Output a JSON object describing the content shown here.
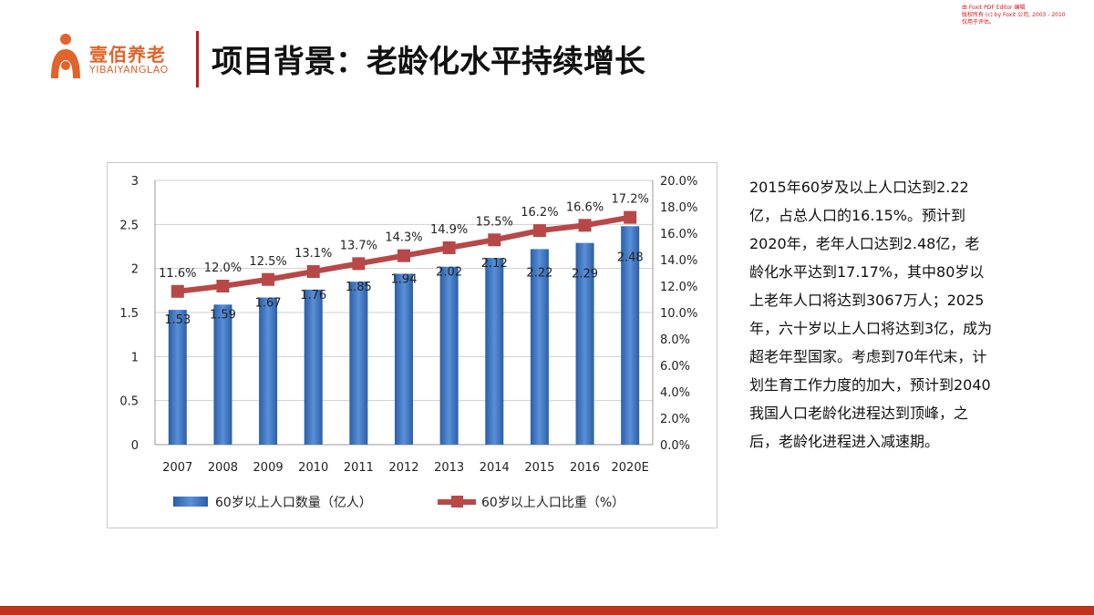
{
  "logo": {
    "name": "壹佰养老",
    "sub": "YIBAIYANGLAO"
  },
  "title": "项目背景：老龄化水平持续增长",
  "watermark": [
    "由 Foxit PDF Editor 编辑",
    "版权所有 (c) by Foxit 公司, 2003 - 2010",
    "仅用于评估。"
  ],
  "description": "2015年60岁及以上人口达到2.22亿，占总人口的16.15%。预计到2020年，老年人口达到2.48亿，老龄化水平达到17.17%，其中80岁以上老年人口将达到3067万人；2025年，六十岁以上人口将达到3亿，成为超老年型国家。考虑到70年代末，计划生育工作力度的加大，预计到2040我国人口老龄化进程达到顶峰，之后，老龄化进程进入减速期。",
  "colors": {
    "bar": "#3b74c4",
    "line": "#b84848",
    "accent": "#e2632b",
    "footer": "#c0321e"
  },
  "chart_data": {
    "type": "bar+line",
    "categories": [
      "2007",
      "2008",
      "2009",
      "2010",
      "2011",
      "2012",
      "2013",
      "2014",
      "2015",
      "2016",
      "2020E"
    ],
    "series": [
      {
        "name": "60岁以上人口数量（亿人）",
        "type": "bar",
        "axis": "left",
        "values": [
          1.53,
          1.59,
          1.67,
          1.76,
          1.85,
          1.94,
          2.02,
          2.12,
          2.22,
          2.29,
          2.48
        ],
        "labels": [
          "1.53",
          "1.59",
          "1.67",
          "1.76",
          "1.85",
          "1.94",
          "2.02",
          "2.12",
          "2.22",
          "2.29",
          "2.48"
        ]
      },
      {
        "name": "60岁以上人口比重（%）",
        "type": "line",
        "axis": "right",
        "values": [
          11.6,
          12.0,
          12.5,
          13.1,
          13.7,
          14.3,
          14.9,
          15.5,
          16.2,
          16.6,
          17.2
        ],
        "labels": [
          "11.6%",
          "12.0%",
          "12.5%",
          "13.1%",
          "13.7%",
          "14.3%",
          "14.9%",
          "15.5%",
          "16.2%",
          "16.6%",
          "17.2%"
        ]
      }
    ],
    "y_left": {
      "min": 0,
      "max": 3,
      "ticks": [
        "0",
        "0.5",
        "1",
        "1.5",
        "2",
        "2.5",
        "3"
      ]
    },
    "y_right": {
      "min": 0,
      "max": 20,
      "ticks": [
        "0.0%",
        "2.0%",
        "4.0%",
        "6.0%",
        "8.0%",
        "10.0%",
        "12.0%",
        "14.0%",
        "16.0%",
        "18.0%",
        "20.0%"
      ]
    },
    "grid": true,
    "legend": "bottom"
  }
}
